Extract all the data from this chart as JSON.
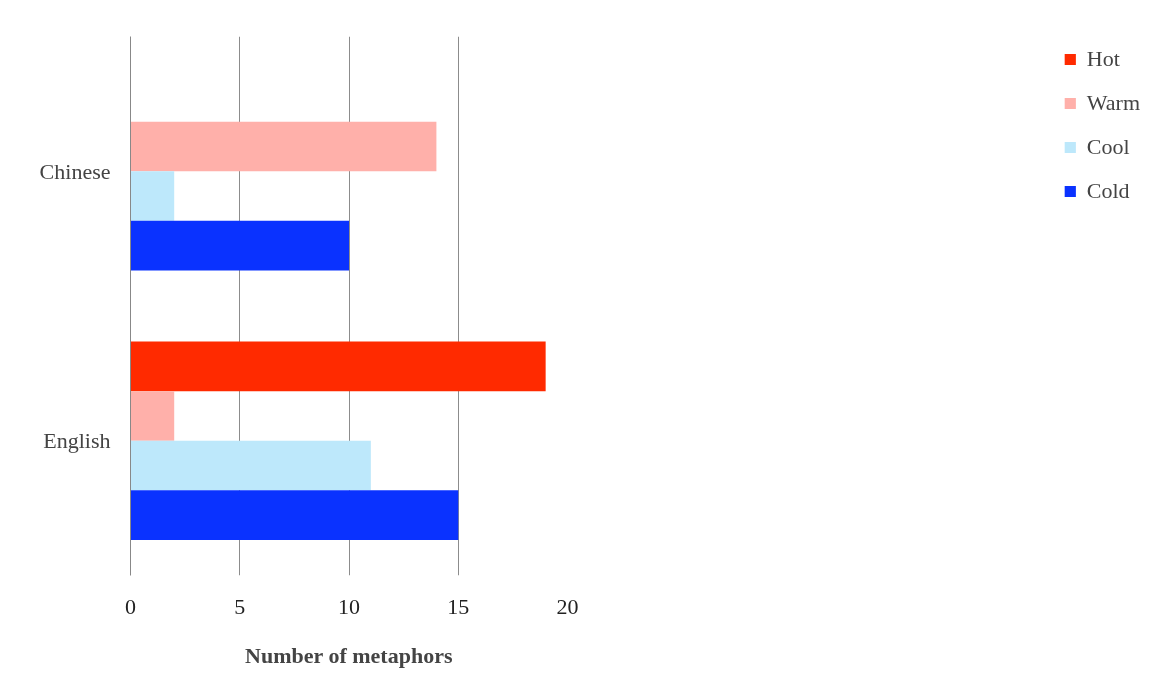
{
  "chart_data": {
    "type": "bar",
    "orientation": "horizontal",
    "xlabel": "Number of metaphors",
    "categories": [
      "Chinese",
      "English"
    ],
    "series": [
      {
        "name": "Hot",
        "color": "#ff2a00",
        "values": [
          0,
          19
        ]
      },
      {
        "name": "Warm",
        "color": "#ffb0aa",
        "values": [
          14,
          2
        ]
      },
      {
        "name": "Cool",
        "color": "#bde8fb",
        "values": [
          2,
          11
        ]
      },
      {
        "name": "Cold",
        "color": "#0a32ff",
        "values": [
          10,
          15
        ]
      }
    ],
    "xlim": [
      0,
      20
    ],
    "xticks": [
      0,
      5,
      10,
      15,
      20
    ],
    "grid": "x",
    "legend": "right"
  }
}
